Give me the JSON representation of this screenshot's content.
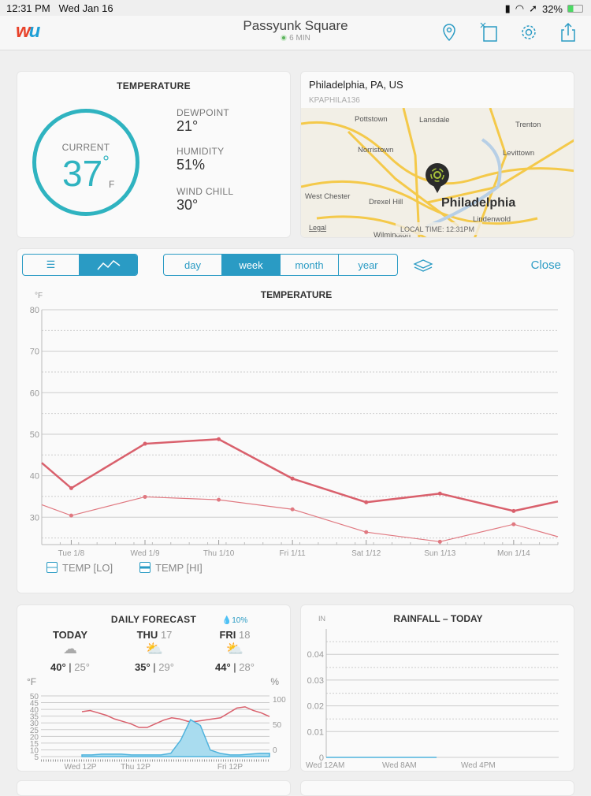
{
  "status": {
    "time": "12:31 PM",
    "date": "Wed Jan 16",
    "battery": "32%"
  },
  "header": {
    "logo": "wu",
    "title": "Passyunk Square",
    "updated": "6 MIN",
    "icons": [
      "location-pin-icon",
      "card-add-icon",
      "gear-icon",
      "share-icon"
    ]
  },
  "temperature": {
    "title": "TEMPERATURE",
    "current_label": "CURRENT",
    "current": "37",
    "deg": "°",
    "unit": "F",
    "dewpoint_label": "DEWPOINT",
    "dewpoint": "21°",
    "humidity_label": "HUMIDITY",
    "humidity": "51%",
    "windchill_label": "WIND CHILL",
    "windchill": "30°"
  },
  "map": {
    "location": "Philadelphia, PA, US",
    "station": "KPAPHILA136",
    "local_time": "LOCAL TIME: 12:31PM",
    "legal": "Legal",
    "places": [
      "Pottstown",
      "Lansdale",
      "Trenton",
      "Norristown",
      "Levittown",
      "West Chester",
      "Drexel Hill",
      "Philadelphia",
      "Lindenwold",
      "Wilmington"
    ]
  },
  "history": {
    "views": [
      "list-icon",
      "chart-icon"
    ],
    "ranges": [
      "day",
      "week",
      "month",
      "year"
    ],
    "active_range": "week",
    "close": "Close",
    "accent": "#2a9bc4"
  },
  "chart_data": {
    "type": "line",
    "title": "TEMPERATURE",
    "ylabel": "°F",
    "ylim": [
      23.4,
      80
    ],
    "yticks": [
      30,
      40,
      50,
      60,
      70,
      80
    ],
    "grid": true,
    "xticks": [
      {
        "x": 8,
        "label": "Tue 1/8"
      },
      {
        "x": 9,
        "label": "Wed 1/9"
      },
      {
        "x": 10,
        "label": "Thu 1/10"
      },
      {
        "x": 11,
        "label": "Fri 1/11"
      },
      {
        "x": 12,
        "label": "Sat 1/12"
      },
      {
        "x": 13,
        "label": "Sun 1/13"
      },
      {
        "x": 14,
        "label": "Mon 1/14"
      }
    ],
    "xlim": [
      7.6,
      14.6
    ],
    "series": [
      {
        "name": "TEMP [HI]",
        "color": "#d9606c",
        "x": [
          7.6,
          8,
          9,
          10,
          11,
          12,
          13,
          14,
          14.6
        ],
        "values": [
          43.1,
          37,
          47.7,
          48.8,
          39.3,
          33.6,
          35.7,
          31.5,
          33.8
        ]
      },
      {
        "name": "TEMP [LO]",
        "color": "#e07880",
        "x": [
          7.6,
          8,
          9,
          10,
          11,
          12,
          13,
          14,
          14.6
        ],
        "values": [
          33,
          30.4,
          34.9,
          34.2,
          31.9,
          26.4,
          24.1,
          28.3,
          25.3
        ]
      }
    ],
    "legend": [
      "TEMP [LO]",
      "TEMP [HI]"
    ],
    "legend_placement": "bottom-left"
  },
  "forecast": {
    "title": "DAILY FORECAST",
    "unit_left": "°F",
    "unit_right": "%",
    "days": [
      {
        "name": "TODAY",
        "date": "",
        "icon": "cloud-icon",
        "hi": "40°",
        "lo": "25°",
        "precip": ""
      },
      {
        "name": "THU",
        "date": "17",
        "icon": "partly-sunny-icon",
        "hi": "35°",
        "lo": "29°",
        "precip": ""
      },
      {
        "name": "FRI",
        "date": "18",
        "icon": "partly-sunny-icon",
        "hi": "44°",
        "lo": "28°",
        "precip": "10%"
      }
    ],
    "yleft": [
      "50",
      "45",
      "40",
      "35",
      "30",
      "25",
      "20",
      "15",
      "10",
      "5"
    ],
    "yright": [
      "100",
      "50",
      "0"
    ],
    "xlabels": [
      "Wed 12P",
      "Thu 12P",
      "Fri 12P"
    ],
    "temp_series": [
      37,
      38,
      36,
      34,
      31,
      29,
      27,
      24,
      24,
      27,
      30,
      32,
      31,
      29,
      29,
      30,
      31,
      32,
      36,
      40,
      41,
      38,
      36,
      33
    ],
    "precip_series": [
      2,
      2,
      3,
      3,
      3,
      2,
      2,
      2,
      2,
      4,
      20,
      45,
      38,
      8,
      4,
      2,
      2,
      3,
      4,
      4
    ]
  },
  "rainfall": {
    "title": "RAINFALL – TODAY",
    "unit": "IN",
    "yticks": [
      "0.04",
      "0.03",
      "0.02",
      "0.01",
      "0"
    ],
    "xlabels": [
      "Wed 12AM",
      "Wed 8AM",
      "Wed 4PM"
    ]
  }
}
